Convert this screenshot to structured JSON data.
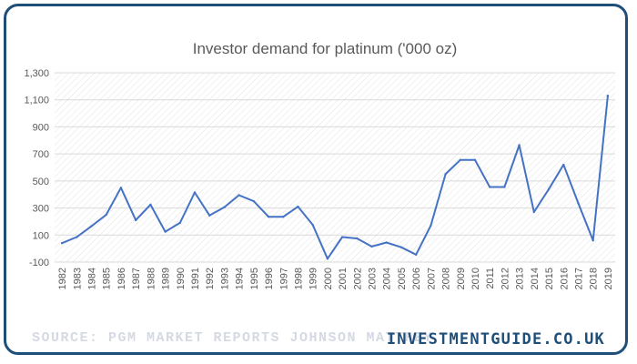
{
  "footer": {
    "source": "SOURCE: PGM MARKET REPORTS JOHNSON MATTHEY",
    "brand": "INVESTMENTGUIDE.CO.UK"
  },
  "colors": {
    "line": "#4472c4",
    "border": "#1f4e79",
    "grid": "#d9d9d9",
    "brand": "#1f4e79",
    "source": "#d4d9e3"
  },
  "chart_data": {
    "type": "line",
    "title": "Investor demand for platinum ('000 oz)",
    "xlabel": "",
    "ylabel": "",
    "ylim": [
      -100,
      1300
    ],
    "yticks": [
      -100,
      100,
      300,
      500,
      700,
      900,
      1100,
      1300
    ],
    "ytick_labels": [
      "-100",
      "100",
      "300",
      "500",
      "700",
      "900",
      "1,100",
      "1,300"
    ],
    "grid": "hatched",
    "legend": "none",
    "x": [
      "1982",
      "1983",
      "1984",
      "1985",
      "1986",
      "1987",
      "1988",
      "1989",
      "1990",
      "1991",
      "1992",
      "1993",
      "1994",
      "1995",
      "1996",
      "1997",
      "1998",
      "1999",
      "2000",
      "2001",
      "2002",
      "2003",
      "2004",
      "2005",
      "2006",
      "2007",
      "2008",
      "2009",
      "2010",
      "2011",
      "2012",
      "2013",
      "2014",
      "2015",
      "2016",
      "2017",
      "2018",
      "2019"
    ],
    "series": [
      {
        "values": [
          40,
          85,
          165,
          250,
          450,
          210,
          325,
          125,
          190,
          415,
          245,
          305,
          395,
          350,
          235,
          235,
          310,
          175,
          -75,
          85,
          75,
          15,
          45,
          10,
          -45,
          170,
          550,
          655,
          655,
          455,
          455,
          765,
          270,
          440,
          620,
          335,
          60,
          1130
        ]
      }
    ]
  }
}
